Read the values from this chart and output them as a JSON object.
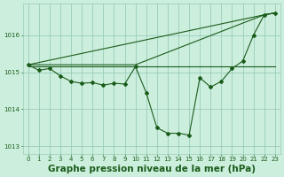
{
  "title": "Graphe pression niveau de la mer (hPa)",
  "background_color": "#cceedd",
  "grid_color": "#99ccbb",
  "line_color": "#1a5c1a",
  "xlim": [
    -0.5,
    23.5
  ],
  "ylim": [
    1012.8,
    1016.85
  ],
  "yticks": [
    1013,
    1014,
    1015,
    1016
  ],
  "xticks": [
    0,
    1,
    2,
    3,
    4,
    5,
    6,
    7,
    8,
    9,
    10,
    11,
    12,
    13,
    14,
    15,
    16,
    17,
    18,
    19,
    20,
    21,
    22,
    23
  ],
  "series": [
    {
      "x": [
        0,
        1,
        2,
        3,
        4,
        5,
        6,
        7,
        8,
        9,
        10,
        11,
        12,
        13,
        14,
        15,
        16,
        17,
        18,
        19,
        20,
        21,
        22,
        23
      ],
      "y": [
        1015.2,
        1015.05,
        1015.1,
        1014.9,
        1014.75,
        1014.7,
        1014.72,
        1014.65,
        1014.7,
        1014.68,
        1015.15,
        1014.45,
        1013.5,
        1013.35,
        1013.35,
        1013.3,
        1014.85,
        1014.6,
        1014.75,
        1015.1,
        1015.3,
        1016.0,
        1016.55,
        1016.6
      ],
      "has_markers": true
    },
    {
      "x": [
        0,
        23
      ],
      "y": [
        1015.15,
        1015.15
      ],
      "has_markers": false
    },
    {
      "x": [
        0,
        22,
        23
      ],
      "y": [
        1015.2,
        1016.55,
        1016.6
      ],
      "has_markers": false
    },
    {
      "x": [
        0,
        10,
        22,
        23
      ],
      "y": [
        1015.2,
        1015.2,
        1016.55,
        1016.6
      ],
      "has_markers": false
    }
  ],
  "marker": "D",
  "marker_size": 2.0,
  "line_width": 0.8,
  "title_fontsize": 7.5,
  "tick_fontsize": 5.0
}
